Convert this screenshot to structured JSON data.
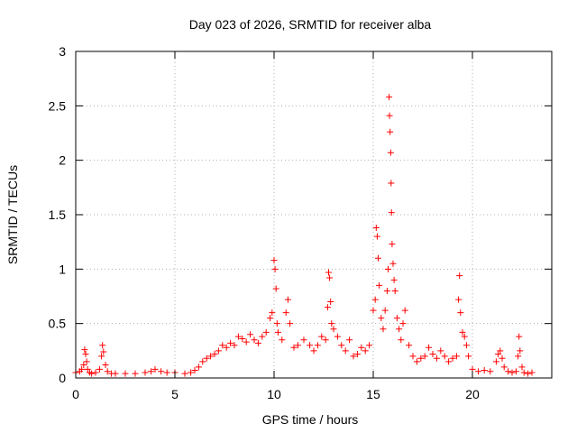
{
  "chart_data": {
    "type": "scatter",
    "title": "Day 023 of 2026, SRMTID for receiver alba",
    "xlabel": "GPS time / hours",
    "ylabel": "SRMTID / TECUs",
    "xlim": [
      0,
      24
    ],
    "ylim": [
      0,
      3
    ],
    "xticks": [
      0,
      5,
      10,
      15,
      20
    ],
    "xtick_labels": [
      "0",
      "5",
      "10",
      "15",
      "20"
    ],
    "yticks": [
      0,
      0.5,
      1,
      1.5,
      2,
      2.5,
      3
    ],
    "ytick_labels": [
      "0",
      "0.5",
      "1",
      "1.5",
      "2",
      "2.5",
      "3"
    ],
    "grid": true,
    "marker": "+",
    "color": "#ff0000",
    "series": [
      {
        "name": "SRMTID",
        "x": [
          0.0,
          0.2,
          0.3,
          0.4,
          0.45,
          0.5,
          0.55,
          0.6,
          0.7,
          0.8,
          1.0,
          1.2,
          1.3,
          1.35,
          1.4,
          1.5,
          1.6,
          1.8,
          2.0,
          2.5,
          3.0,
          3.5,
          3.8,
          4.0,
          4.3,
          4.6,
          5.0,
          5.5,
          5.8,
          6.0,
          6.2,
          6.4,
          6.6,
          6.8,
          7.0,
          7.2,
          7.4,
          7.6,
          7.8,
          8.0,
          8.2,
          8.4,
          8.6,
          8.8,
          9.0,
          9.2,
          9.4,
          9.6,
          9.8,
          9.9,
          10.0,
          10.05,
          10.1,
          10.15,
          10.2,
          10.4,
          10.6,
          10.7,
          10.8,
          11.0,
          11.2,
          11.5,
          11.8,
          12.0,
          12.2,
          12.4,
          12.6,
          12.7,
          12.75,
          12.8,
          12.85,
          12.9,
          13.0,
          13.2,
          13.4,
          13.6,
          13.8,
          14.0,
          14.2,
          14.4,
          14.6,
          14.8,
          15.0,
          15.1,
          15.15,
          15.2,
          15.25,
          15.3,
          15.4,
          15.5,
          15.6,
          15.7,
          15.75,
          15.8,
          15.82,
          15.85,
          15.88,
          15.9,
          15.92,
          15.95,
          16.0,
          16.05,
          16.1,
          16.2,
          16.3,
          16.4,
          16.5,
          16.6,
          16.8,
          17.0,
          17.2,
          17.4,
          17.6,
          17.8,
          18.0,
          18.2,
          18.4,
          18.6,
          18.8,
          19.0,
          19.2,
          19.3,
          19.35,
          19.4,
          19.5,
          19.6,
          19.7,
          19.8,
          20.0,
          20.3,
          20.6,
          20.9,
          21.2,
          21.3,
          21.4,
          21.5,
          21.6,
          21.8,
          22.0,
          22.2,
          22.3,
          22.35,
          22.4,
          22.5,
          22.6,
          22.8,
          23.0
        ],
        "y": [
          0.05,
          0.06,
          0.08,
          0.12,
          0.26,
          0.22,
          0.15,
          0.08,
          0.05,
          0.04,
          0.05,
          0.08,
          0.2,
          0.3,
          0.24,
          0.12,
          0.06,
          0.04,
          0.04,
          0.04,
          0.04,
          0.05,
          0.06,
          0.08,
          0.06,
          0.05,
          0.05,
          0.04,
          0.05,
          0.07,
          0.1,
          0.15,
          0.18,
          0.2,
          0.22,
          0.25,
          0.3,
          0.28,
          0.32,
          0.3,
          0.38,
          0.36,
          0.33,
          0.4,
          0.35,
          0.32,
          0.38,
          0.42,
          0.55,
          0.6,
          1.08,
          1.0,
          0.82,
          0.5,
          0.42,
          0.35,
          0.6,
          0.72,
          0.5,
          0.28,
          0.3,
          0.35,
          0.3,
          0.25,
          0.3,
          0.38,
          0.35,
          0.65,
          0.97,
          0.92,
          0.7,
          0.5,
          0.45,
          0.38,
          0.3,
          0.25,
          0.35,
          0.2,
          0.22,
          0.28,
          0.25,
          0.3,
          0.62,
          0.72,
          1.38,
          1.3,
          1.1,
          0.85,
          0.55,
          0.45,
          0.62,
          0.8,
          1.0,
          2.58,
          2.41,
          2.26,
          2.07,
          1.79,
          1.52,
          1.23,
          1.05,
          0.9,
          0.8,
          0.55,
          0.45,
          0.35,
          0.5,
          0.62,
          0.3,
          0.2,
          0.15,
          0.18,
          0.2,
          0.28,
          0.22,
          0.18,
          0.25,
          0.2,
          0.15,
          0.18,
          0.2,
          0.72,
          0.94,
          0.6,
          0.42,
          0.38,
          0.3,
          0.2,
          0.08,
          0.06,
          0.07,
          0.06,
          0.15,
          0.22,
          0.25,
          0.18,
          0.1,
          0.06,
          0.05,
          0.06,
          0.2,
          0.38,
          0.25,
          0.1,
          0.05,
          0.04,
          0.05
        ]
      }
    ]
  }
}
